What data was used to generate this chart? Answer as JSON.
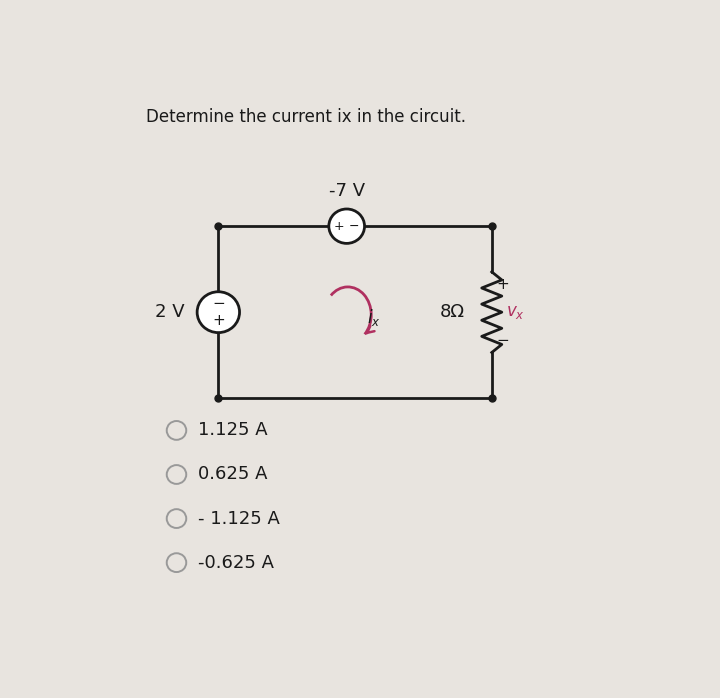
{
  "title": "Determine the current ix in the circuit.",
  "title_fontsize": 12,
  "bg_color": "#e8e4df",
  "options": [
    "1.125 A",
    "0.625 A",
    "- 1.125 A",
    "-0.625 A"
  ],
  "lw": 2.0,
  "circuit": {
    "left_source_label": "2 V",
    "top_source_label": "-7 V",
    "resistor_label": "8Ω",
    "vx_label": "v_x",
    "ix_label": "i_x"
  },
  "colors": {
    "wire": "#1a1a1a",
    "source_fill": "#ffffff",
    "red": "#b03060",
    "radio_edge": "#999999",
    "text": "#1a1a1a"
  }
}
